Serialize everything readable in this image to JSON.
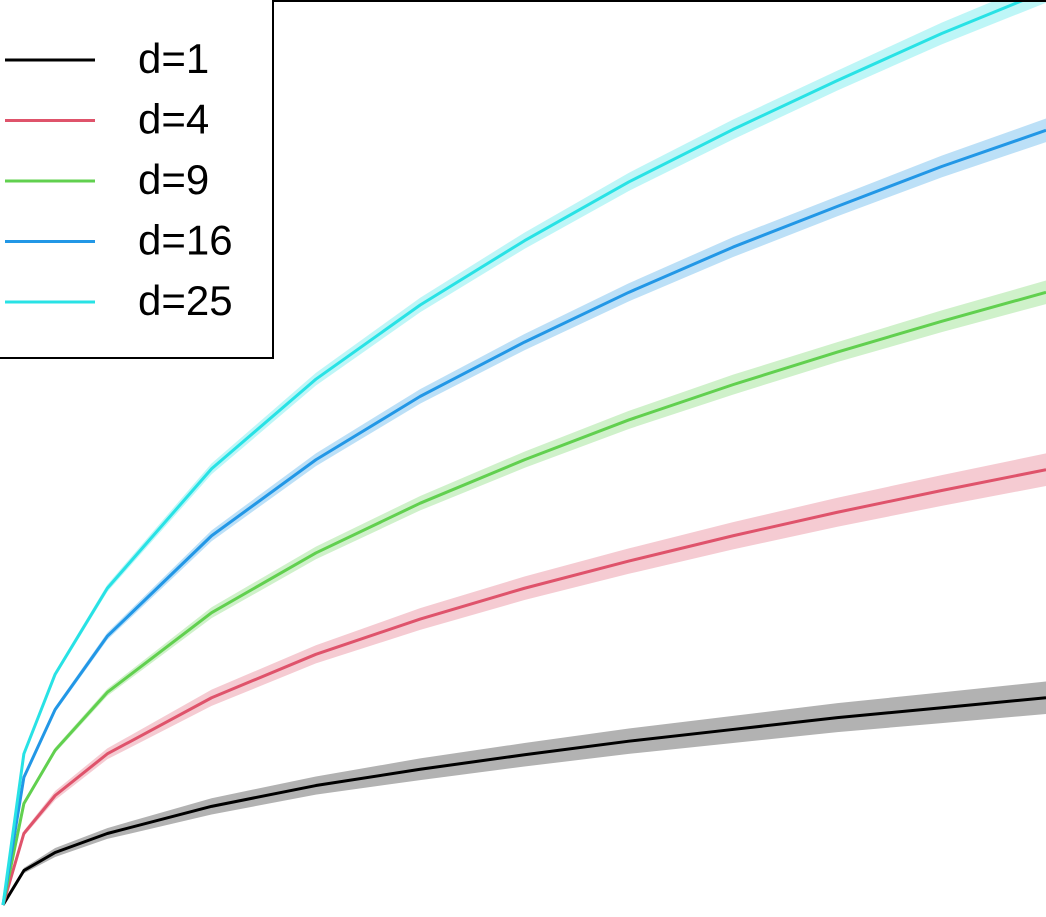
{
  "chart_data": {
    "type": "line",
    "legend": "topleft",
    "x": [
      0,
      0.02,
      0.05,
      0.1,
      0.2,
      0.3,
      0.4,
      0.5,
      0.6,
      0.7,
      0.8,
      0.9,
      1.0
    ],
    "xlim": [
      0,
      1
    ],
    "ylim": [
      0,
      1
    ],
    "series": [
      {
        "name": "d=1",
        "color": "#000000",
        "values": [
          0,
          0.038,
          0.058,
          0.079,
          0.109,
          0.132,
          0.15,
          0.166,
          0.181,
          0.194,
          0.207,
          0.218,
          0.229
        ],
        "errors": [
          0,
          0.003,
          0.005,
          0.006,
          0.009,
          0.01,
          0.012,
          0.013,
          0.014,
          0.015,
          0.016,
          0.017,
          0.018
        ]
      },
      {
        "name": "d=4",
        "color": "#df536b",
        "values": [
          0,
          0.079,
          0.121,
          0.167,
          0.229,
          0.277,
          0.316,
          0.35,
          0.38,
          0.408,
          0.434,
          0.458,
          0.481
        ],
        "errors": [
          0,
          0.003,
          0.005,
          0.006,
          0.009,
          0.01,
          0.012,
          0.013,
          0.014,
          0.015,
          0.016,
          0.017,
          0.018
        ]
      },
      {
        "name": "d=9",
        "color": "#61d04f",
        "values": [
          0,
          0.112,
          0.171,
          0.235,
          0.323,
          0.389,
          0.444,
          0.492,
          0.536,
          0.575,
          0.611,
          0.645,
          0.677
        ],
        "errors": [
          0,
          0.002,
          0.003,
          0.004,
          0.006,
          0.007,
          0.008,
          0.009,
          0.01,
          0.011,
          0.011,
          0.012,
          0.013
        ]
      },
      {
        "name": "d=16",
        "color": "#2297e6",
        "values": [
          0,
          0.141,
          0.216,
          0.297,
          0.408,
          0.492,
          0.562,
          0.622,
          0.677,
          0.727,
          0.772,
          0.816,
          0.856
        ],
        "errors": [
          0,
          0.002,
          0.003,
          0.004,
          0.006,
          0.007,
          0.008,
          0.009,
          0.01,
          0.011,
          0.011,
          0.012,
          0.013
        ]
      },
      {
        "name": "d=25",
        "color": "#28e2e5",
        "values": [
          0,
          0.167,
          0.255,
          0.35,
          0.482,
          0.581,
          0.663,
          0.734,
          0.799,
          0.857,
          0.911,
          0.963,
          1.01
        ],
        "errors": [
          0,
          0.002,
          0.003,
          0.004,
          0.006,
          0.007,
          0.008,
          0.009,
          0.01,
          0.011,
          0.011,
          0.012,
          0.013
        ]
      }
    ]
  }
}
